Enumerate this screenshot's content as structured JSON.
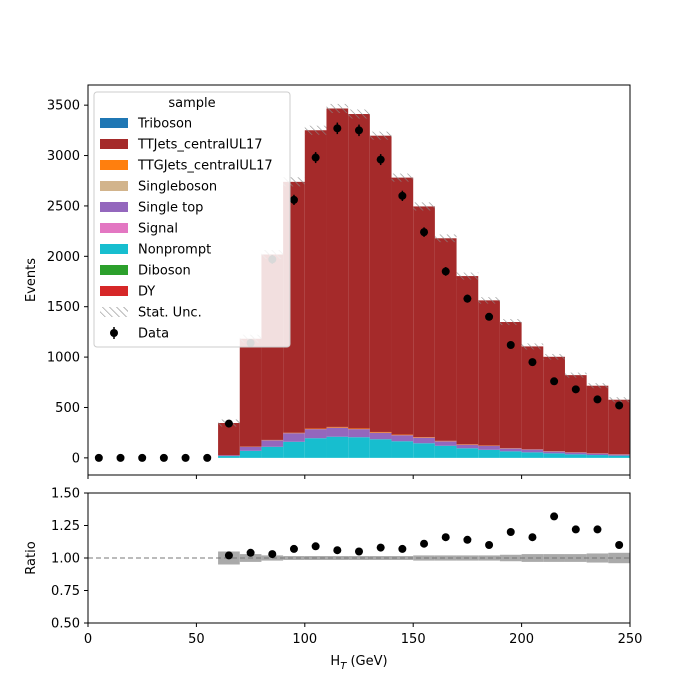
{
  "chart_data": [
    {
      "type": "bar",
      "subtype": "stacked-histogram",
      "xlim": [
        0,
        250
      ],
      "ylim": [
        -170,
        3700
      ],
      "bin_edges": [
        0,
        10,
        20,
        30,
        40,
        50,
        60,
        70,
        80,
        90,
        100,
        110,
        120,
        130,
        140,
        150,
        160,
        170,
        180,
        190,
        200,
        210,
        220,
        230,
        240,
        250
      ],
      "ylabel": "Events",
      "yticks": [
        "0",
        "500",
        "1000",
        "1500",
        "2000",
        "2500",
        "3000",
        "3500"
      ],
      "legend": {
        "title": "sample",
        "location": "upper left",
        "entries": [
          "Triboson",
          "TTJets_centralUL17",
          "TTGJets_centralUL17",
          "Singleboson",
          "Single top",
          "Signal",
          "Nonprompt",
          "Diboson",
          "DY",
          "Stat. Unc.",
          "Data"
        ]
      },
      "series": [
        {
          "name": "Nonprompt",
          "color": "#17becf",
          "values": [
            0,
            0,
            0,
            0,
            0,
            0,
            18,
            70,
            110,
            160,
            195,
            210,
            205,
            185,
            165,
            145,
            120,
            95,
            80,
            65,
            55,
            45,
            35,
            28,
            22
          ]
        },
        {
          "name": "Single top",
          "color": "#9467bd",
          "values": [
            0,
            0,
            0,
            0,
            0,
            0,
            8,
            40,
            65,
            85,
            90,
            90,
            80,
            65,
            60,
            55,
            45,
            35,
            40,
            30,
            28,
            20,
            18,
            15,
            12
          ]
        },
        {
          "name": "TTGJets_centralUL17",
          "color": "#ff7f0e",
          "values": [
            0,
            0,
            0,
            0,
            0,
            0,
            0,
            2,
            3,
            4,
            6,
            7,
            7,
            7,
            6,
            5,
            4,
            4,
            3,
            3,
            3,
            3,
            3,
            3,
            3
          ]
        },
        {
          "name": "TTJets_centralUL17",
          "color": "#a52a2a",
          "values": [
            0,
            0,
            0,
            0,
            0,
            0,
            320,
            1070,
            1840,
            2490,
            2960,
            3160,
            3120,
            2940,
            2550,
            2290,
            2010,
            1670,
            1440,
            1250,
            1020,
            935,
            765,
            670,
            540
          ]
        },
        {
          "name": "DY",
          "color": "#d62728",
          "values": [
            0,
            0,
            0,
            0,
            0,
            0,
            0,
            0,
            0,
            0,
            0,
            0,
            0,
            0,
            0,
            0,
            0,
            0,
            0,
            0,
            0,
            0,
            0,
            0,
            0
          ]
        }
      ],
      "stat_unc": [
        0,
        0,
        0,
        0,
        0,
        0,
        35,
        40,
        45,
        45,
        45,
        45,
        45,
        40,
        40,
        40,
        38,
        35,
        32,
        30,
        30,
        28,
        25,
        25,
        25
      ],
      "data_points": {
        "name": "Data",
        "x": [
          5,
          15,
          25,
          35,
          45,
          55,
          65,
          75,
          85,
          95,
          105,
          115,
          125,
          135,
          145,
          155,
          165,
          175,
          185,
          195,
          205,
          215,
          225,
          235,
          245
        ],
        "y": [
          0,
          0,
          0,
          0,
          0,
          0,
          340,
          1140,
          1970,
          2560,
          2980,
          3270,
          3250,
          2960,
          2600,
          2240,
          1850,
          1580,
          1400,
          1120,
          950,
          760,
          680,
          580,
          520
        ]
      }
    },
    {
      "type": "scatter",
      "subtype": "ratio",
      "xlim": [
        0,
        250
      ],
      "ylim": [
        0.5,
        1.5
      ],
      "xlabel_main": "H",
      "xlabel_sub": "T",
      "xlabel_unit": " (GeV)",
      "ylabel": "Ratio",
      "xticks": [
        "0",
        "50",
        "100",
        "150",
        "200",
        "250"
      ],
      "yticks": [
        "0.50",
        "0.75",
        "1.00",
        "1.25",
        "1.50"
      ],
      "reference_line": 1.0,
      "x": [
        65,
        75,
        85,
        95,
        105,
        115,
        125,
        135,
        145,
        155,
        165,
        175,
        185,
        195,
        205,
        215,
        225,
        235,
        245
      ],
      "y": [
        1.02,
        1.04,
        1.03,
        1.07,
        1.09,
        1.06,
        1.05,
        1.08,
        1.07,
        1.11,
        1.16,
        1.14,
        1.1,
        1.2,
        1.16,
        1.32,
        1.22,
        1.22,
        1.1
      ],
      "unc": [
        0.05,
        0.03,
        0.02,
        0.015,
        0.015,
        0.015,
        0.015,
        0.015,
        0.015,
        0.02,
        0.02,
        0.02,
        0.02,
        0.025,
        0.03,
        0.03,
        0.03,
        0.035,
        0.04
      ]
    }
  ]
}
